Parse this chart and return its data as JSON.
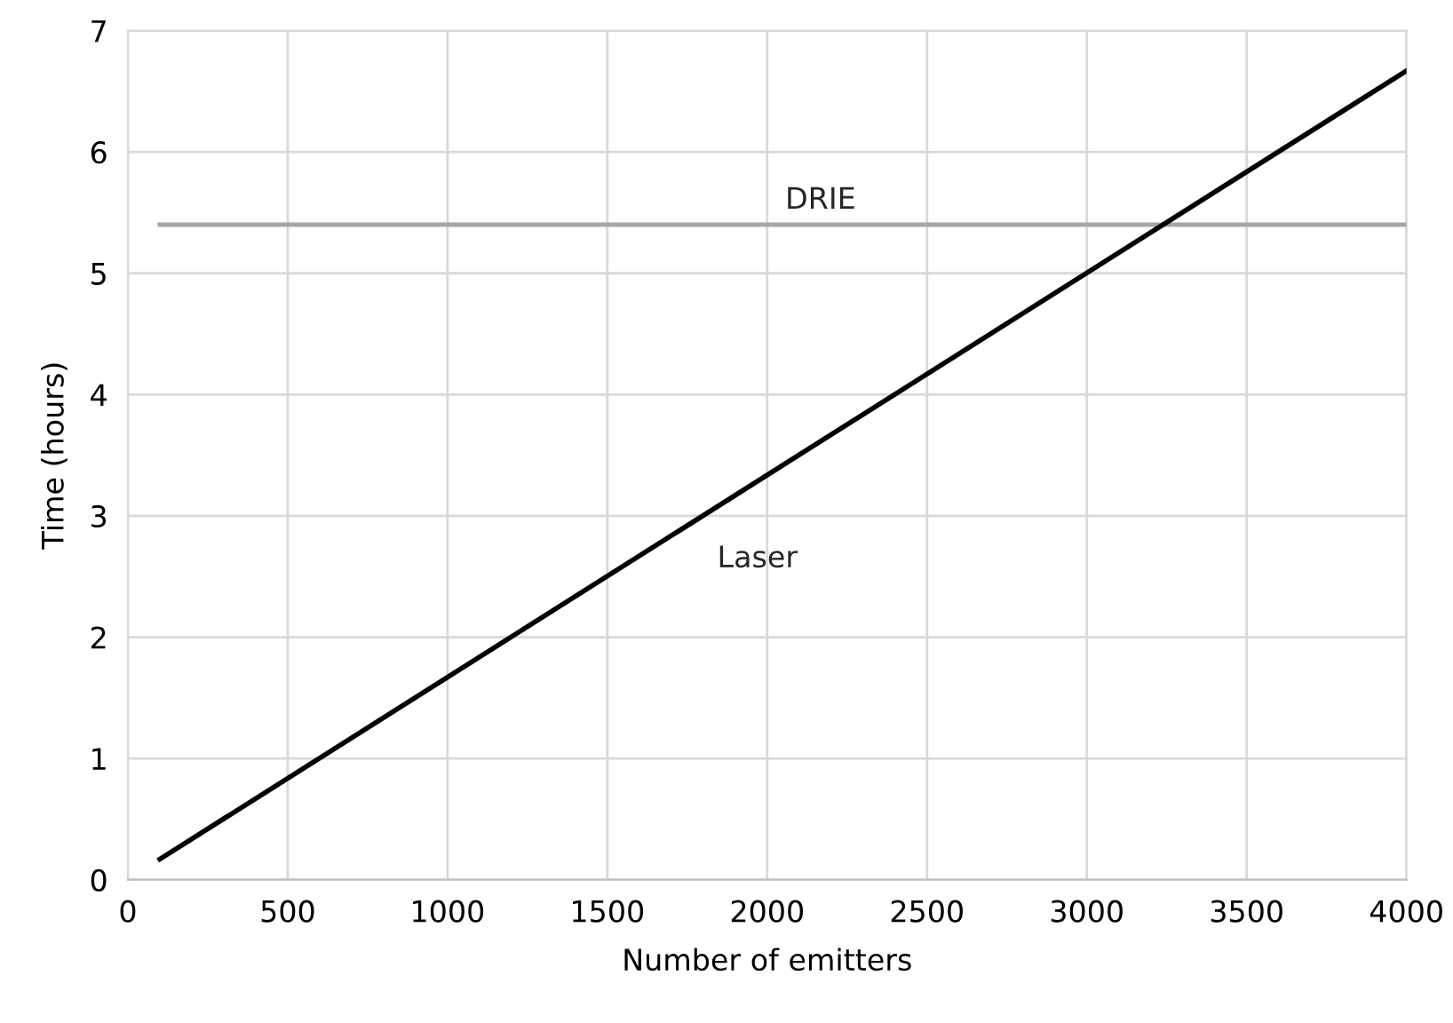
{
  "chart_data": {
    "type": "line",
    "xlabel": "Number of emitters",
    "ylabel": "Time (hours)",
    "series": [
      {
        "name": "DRIE",
        "color": "#a6a6a6",
        "values": [
          5.4,
          5.4
        ]
      },
      {
        "name": "Laser",
        "color": "#000000",
        "values": [
          0.17,
          6.67
        ]
      }
    ],
    "x": [
      100,
      4000
    ],
    "xlim": [
      0,
      4000
    ],
    "xticks": [
      0,
      500,
      1000,
      1500,
      2000,
      2500,
      3000,
      3500,
      4000
    ],
    "ylim": [
      0,
      7
    ],
    "yticks": [
      0,
      1,
      2,
      3,
      4,
      5,
      6,
      7
    ],
    "grid": true,
    "marker": "none",
    "line_style": "solid"
  }
}
